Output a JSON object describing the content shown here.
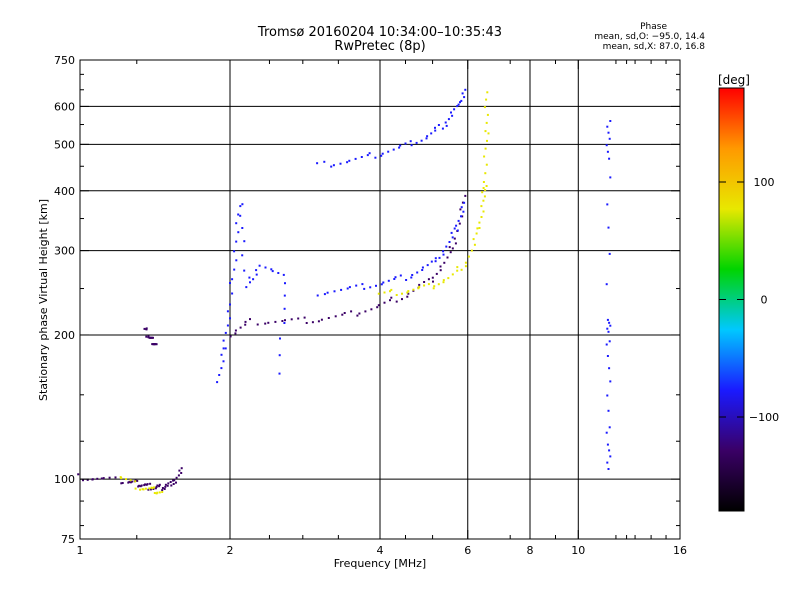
{
  "title": {
    "line1": "Tromsø 20160204 10:34:00–10:35:43",
    "line2": "RwPretec (8p)"
  },
  "phase_info": {
    "heading": "Phase",
    "line_o": "mean, sd,O: −95.0, 14.4",
    "line_x": "mean, sd,X:  87.0, 16.8"
  },
  "colorbar": {
    "unit": "[deg]",
    "ticks": [
      "100",
      "0",
      "−100"
    ],
    "tick_values": [
      100,
      0,
      -100
    ],
    "range": [
      -180,
      180
    ],
    "colors": [
      "#000000",
      "#3a0066",
      "#1a1aff",
      "#00c8ff",
      "#00d400",
      "#e8e800",
      "#ff9900",
      "#ff0000"
    ]
  },
  "chart_data": {
    "type": "scatter",
    "xlabel": "Frequency [MHz]",
    "ylabel": "Stationary phase Virtual Height [km]",
    "xscale": "log",
    "yscale": "log",
    "xlim": [
      1,
      16
    ],
    "ylim": [
      75,
      750
    ],
    "xticks": [
      1,
      2,
      4,
      6,
      8,
      10,
      16
    ],
    "xtick_labels": [
      "1",
      "2",
      "4",
      "6",
      "8",
      "10",
      "16"
    ],
    "xminor": [
      1.3,
      2.4,
      2.8,
      3.3,
      4.5,
      5.1,
      7.3,
      9,
      11.9,
      12.5,
      13,
      14,
      15
    ],
    "yticks": [
      75,
      100,
      200,
      300,
      400,
      500,
      600,
      750
    ],
    "ytick_labels": [
      "75",
      "100",
      "200",
      "300",
      "400",
      "500",
      "600",
      "750"
    ],
    "yminor": [
      80,
      90,
      120,
      150,
      250,
      350,
      450,
      550,
      650,
      700
    ],
    "grid_x": [
      2,
      4,
      6,
      8,
      10
    ],
    "grid_y": [
      100,
      200,
      300,
      400,
      500,
      600
    ],
    "series": [
      {
        "points": [
          [
            1.0,
            101
          ],
          [
            1.1,
            100
          ],
          [
            1.25,
            99
          ],
          [
            1.3,
            98
          ],
          [
            1.35,
            97
          ],
          [
            1.4,
            96
          ],
          [
            1.45,
            96
          ],
          [
            1.5,
            97
          ],
          [
            1.55,
            99
          ],
          [
            1.6,
            104
          ]
        ],
        "phase": -110
      },
      {
        "points": [
          [
            1.35,
            205
          ],
          [
            1.38,
            198
          ],
          [
            1.4,
            194
          ],
          [
            1.42,
            190
          ]
        ],
        "phase": -105
      },
      {
        "points": [
          [
            1.2,
            101
          ],
          [
            1.32,
            96
          ],
          [
            1.4,
            95
          ],
          [
            1.45,
            94
          ]
        ],
        "phase": 100
      },
      {
        "points": [
          [
            2.0,
            200
          ],
          [
            2.2,
            213
          ],
          [
            2.6,
            214
          ],
          [
            3.0,
            215
          ],
          [
            3.5,
            221
          ],
          [
            4.0,
            230
          ],
          [
            4.5,
            242
          ],
          [
            5.0,
            258
          ],
          [
            5.4,
            282
          ],
          [
            5.7,
            320
          ],
          [
            5.9,
            385
          ]
        ],
        "phase": -115
      },
      {
        "points": [
          [
            3.0,
            245
          ],
          [
            3.5,
            250
          ],
          [
            4.0,
            256
          ],
          [
            4.5,
            264
          ],
          [
            5.0,
            278
          ],
          [
            5.4,
            300
          ],
          [
            5.7,
            335
          ],
          [
            5.9,
            375
          ]
        ],
        "phase": -95
      },
      {
        "points": [
          [
            3.0,
            452
          ],
          [
            3.5,
            462
          ],
          [
            4.0,
            478
          ],
          [
            4.5,
            497
          ],
          [
            5.0,
            520
          ],
          [
            5.4,
            552
          ],
          [
            5.7,
            595
          ],
          [
            5.95,
            650
          ]
        ],
        "phase": -100
      },
      {
        "points": [
          [
            4.0,
            243
          ],
          [
            4.5,
            247
          ],
          [
            5.0,
            252
          ],
          [
            5.5,
            262
          ],
          [
            6.0,
            285
          ],
          [
            6.3,
            330
          ],
          [
            6.45,
            380
          ],
          [
            6.5,
            420
          ],
          [
            6.55,
            520
          ],
          [
            6.55,
            640
          ]
        ],
        "phase": 95
      },
      {
        "points": [
          [
            1.9,
            160
          ],
          [
            1.95,
            190
          ],
          [
            2.0,
            230
          ],
          [
            2.05,
            300
          ],
          [
            2.1,
            380
          ],
          [
            2.15,
            250
          ],
          [
            2.3,
            280
          ],
          [
            2.6,
            260
          ],
          [
            2.5,
            165
          ]
        ],
        "phase": -95
      },
      {
        "points": [
          [
            11.5,
            565
          ],
          [
            11.5,
            462
          ],
          [
            11.5,
            215
          ],
          [
            11.5,
            193
          ],
          [
            11.5,
            127
          ],
          [
            11.5,
            105
          ]
        ],
        "phase": -90
      }
    ]
  }
}
